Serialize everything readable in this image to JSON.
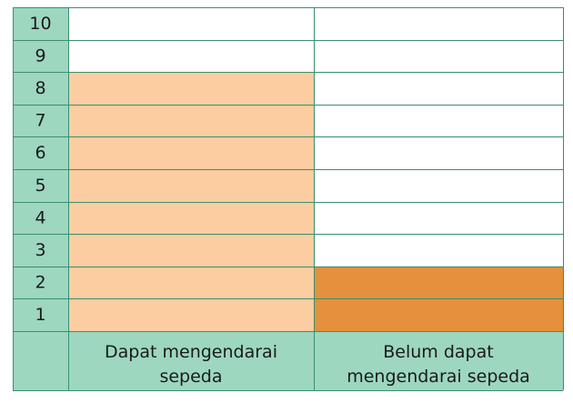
{
  "chart_data": {
    "type": "bar",
    "categories": [
      [
        "Dapat mengendarai",
        "sepeda"
      ],
      [
        "Belum dapat",
        "mengendarai sepeda"
      ]
    ],
    "values": [
      8,
      2
    ],
    "ylim": [
      0,
      10
    ],
    "yticks": [
      "1",
      "2",
      "3",
      "4",
      "5",
      "6",
      "7",
      "8",
      "9",
      "10"
    ],
    "grid": true,
    "colors": {
      "bars": [
        "#fccda1",
        "#e4903c"
      ],
      "axis_fill": "#9dd7c0",
      "grid_line": "#3a8f6e",
      "background": "#ffffff"
    }
  }
}
